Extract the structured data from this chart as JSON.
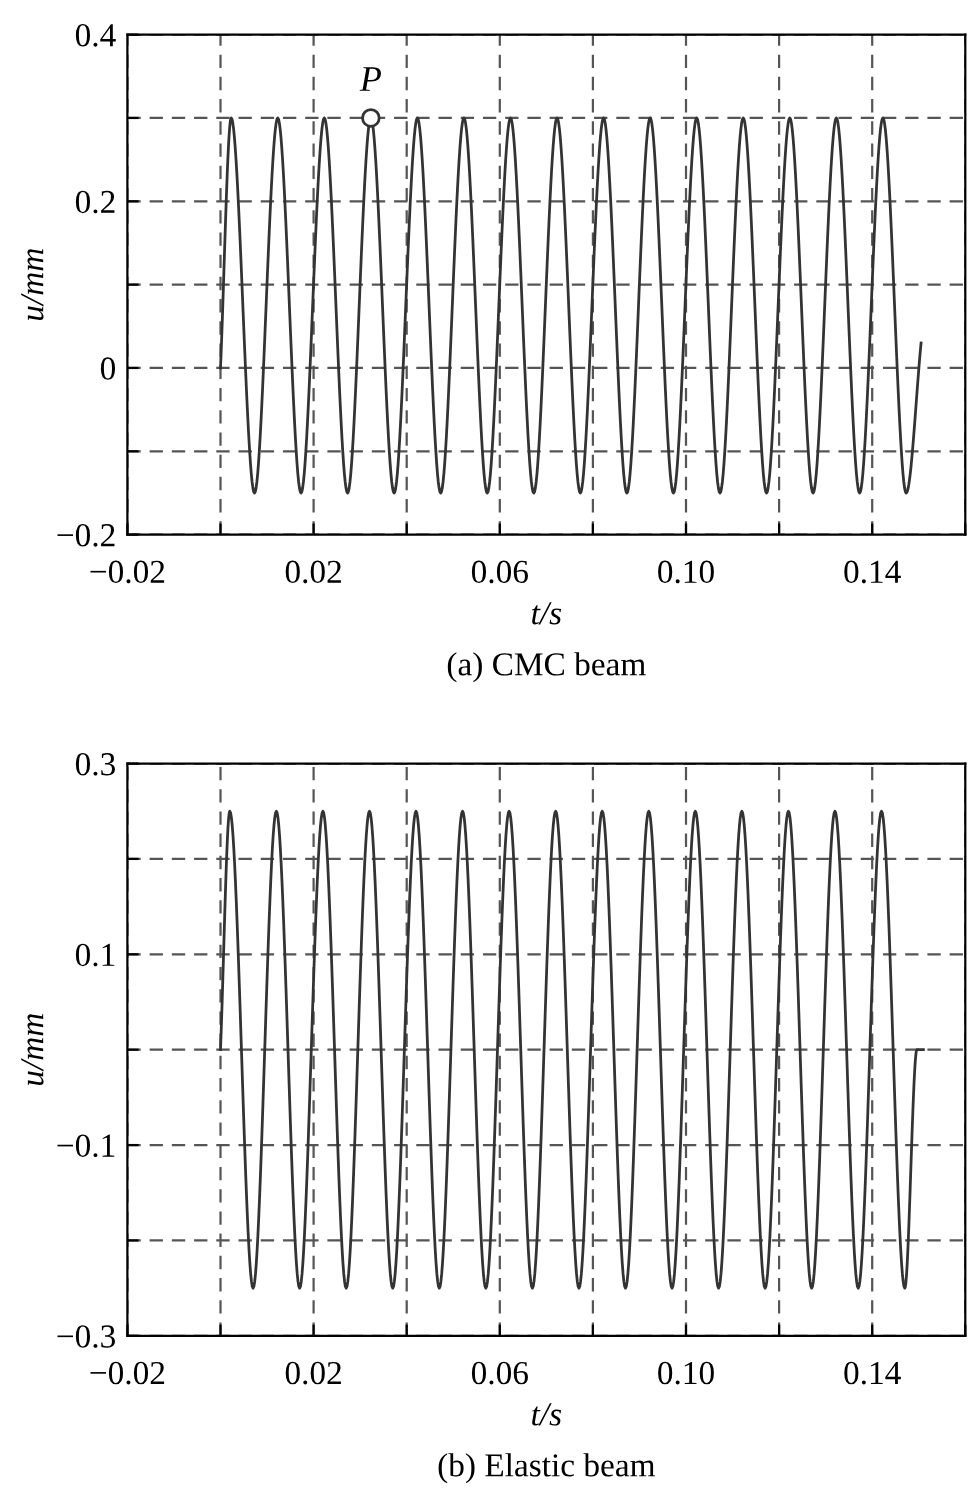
{
  "chart_data": [
    {
      "type": "line",
      "title": "(a) CMC beam",
      "xlabel": "t/s",
      "ylabel": "u/mm",
      "grid": true,
      "line_style": "solid",
      "xlim": [
        -0.02,
        0.16
      ],
      "ylim": [
        -0.2,
        0.4
      ],
      "xticks": [
        {
          "value": -0.02,
          "label": "−0.02"
        },
        {
          "value": 0,
          "label": null
        },
        0.02,
        {
          "value": 0.04,
          "label": null
        },
        0.06,
        {
          "value": 0.08,
          "label": null
        },
        {
          "value": 0.1,
          "label": "0.10"
        },
        {
          "value": 0.12,
          "label": null
        },
        0.14,
        {
          "value": 0.16,
          "label": null
        }
      ],
      "yticks": [
        {
          "value": -0.2,
          "label": "−0.2"
        },
        {
          "value": -0.1,
          "label": null
        },
        0,
        {
          "value": 0.1,
          "label": null
        },
        0.2,
        {
          "value": 0.3,
          "label": null
        },
        0.4
      ],
      "x": [
        0,
        0.0023,
        0.0073,
        0.0123,
        0.0173,
        0.0223,
        0.0273,
        0.0323,
        0.0373,
        0.0423,
        0.0473,
        0.0523,
        0.0573,
        0.0623,
        0.0673,
        0.0723,
        0.0773,
        0.0823,
        0.0873,
        0.0923,
        0.0973,
        0.1023,
        0.1073,
        0.1123,
        0.1173,
        0.1223,
        0.1273,
        0.1323,
        0.1373,
        0.1423,
        0.1473,
        0.1505
      ],
      "series": [
        {
          "color": "#333333",
          "values": [
            0,
            0.3,
            -0.15,
            0.3,
            -0.15,
            0.3,
            -0.15,
            0.3,
            -0.15,
            0.3,
            -0.15,
            0.3,
            -0.15,
            0.3,
            -0.15,
            0.3,
            -0.15,
            0.3,
            -0.15,
            0.3,
            -0.15,
            0.3,
            -0.15,
            0.3,
            -0.15,
            0.3,
            -0.15,
            0.3,
            -0.15,
            0.3,
            -0.15,
            0.03
          ]
        }
      ],
      "annotations": [
        {
          "text": "P",
          "x": 0.0323,
          "y": 0.3
        }
      ]
    },
    {
      "type": "line",
      "title": "(b) Elastic beam",
      "xlabel": "t/s",
      "ylabel": "u/mm",
      "grid": true,
      "line_style": "solid",
      "xlim": [
        -0.02,
        0.16
      ],
      "ylim": [
        -0.3,
        0.3
      ],
      "xticks": [
        {
          "value": -0.02,
          "label": "−0.02"
        },
        {
          "value": 0,
          "label": null
        },
        0.02,
        {
          "value": 0.04,
          "label": null
        },
        0.06,
        {
          "value": 0.08,
          "label": null
        },
        {
          "value": 0.1,
          "label": "0.10"
        },
        {
          "value": 0.12,
          "label": null
        },
        0.14,
        {
          "value": 0.16,
          "label": null
        }
      ],
      "yticks": [
        {
          "value": -0.3,
          "label": "−0.3"
        },
        {
          "value": -0.2,
          "label": null
        },
        {
          "value": -0.1,
          "label": "−0.1"
        },
        {
          "value": 0,
          "label": null
        },
        0.1,
        {
          "value": 0.2,
          "label": null
        },
        0.3
      ],
      "x": [
        0,
        0.002,
        0.007,
        0.012,
        0.017,
        0.022,
        0.027,
        0.032,
        0.037,
        0.042,
        0.047,
        0.052,
        0.057,
        0.062,
        0.067,
        0.072,
        0.077,
        0.082,
        0.087,
        0.092,
        0.097,
        0.102,
        0.107,
        0.112,
        0.117,
        0.122,
        0.127,
        0.132,
        0.137,
        0.142,
        0.147,
        0.1496,
        0.151
      ],
      "series": [
        {
          "color": "#333333",
          "values": [
            0,
            0.25,
            -0.25,
            0.25,
            -0.25,
            0.25,
            -0.25,
            0.25,
            -0.25,
            0.25,
            -0.25,
            0.25,
            -0.25,
            0.25,
            -0.25,
            0.25,
            -0.25,
            0.25,
            -0.25,
            0.25,
            -0.25,
            0.25,
            -0.25,
            0.25,
            -0.25,
            0.25,
            -0.25,
            0.25,
            -0.25,
            0.25,
            -0.25,
            0,
            0
          ]
        }
      ]
    }
  ]
}
